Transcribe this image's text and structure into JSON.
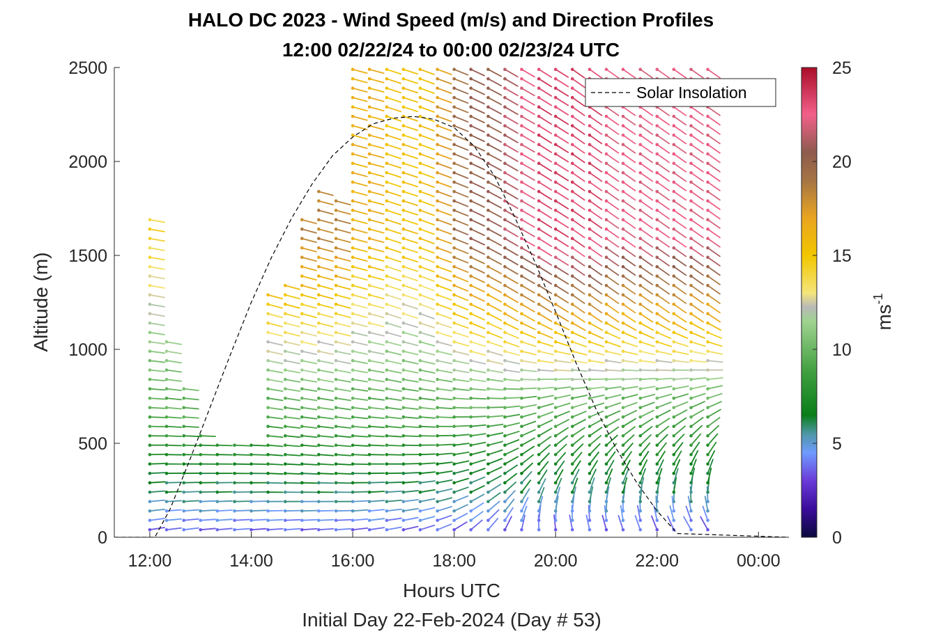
{
  "chart_data": {
    "type": "wind_barb_profile",
    "title": "HALO DC 2023 - Wind Speed (m/s) and Direction Profiles",
    "subtitle": "12:00 02/22/24 to 00:00 02/23/24  UTC",
    "xlabel": "Hours UTC",
    "xlabel_secondary": "Initial Day 22-Feb-2024 (Day # 53)",
    "ylabel": "Altitude (m)",
    "xlim_hours": [
      11.3,
      24.6
    ],
    "ylim": [
      0,
      2500
    ],
    "x_tick_values": [
      12,
      14,
      16,
      18,
      20,
      22,
      24
    ],
    "x_tick_labels": [
      "12:00",
      "14:00",
      "16:00",
      "18:00",
      "20:00",
      "22:00",
      "00:00"
    ],
    "y_ticks": [
      0,
      500,
      1000,
      1500,
      2000,
      2500
    ],
    "y_tick_labels": [
      "0",
      "500",
      "1000",
      "1500",
      "2000",
      "2500"
    ],
    "colorbar": {
      "label": "ms",
      "label_exponent": "-1",
      "range": [
        0,
        25
      ],
      "ticks": [
        0,
        5,
        10,
        15,
        20,
        25
      ],
      "tick_labels": [
        "0",
        "5",
        "10",
        "15",
        "20",
        "25"
      ]
    },
    "legend": {
      "entries": [
        "Solar Insolation"
      ],
      "placement": "top-right"
    },
    "solar_insolation": {
      "hours": [
        11.3,
        12.1,
        12.4,
        12.8,
        13.2,
        13.6,
        14.0,
        14.4,
        14.8,
        15.2,
        15.6,
        16.0,
        16.4,
        16.8,
        17.2,
        17.6,
        18.0,
        18.4,
        18.8,
        19.2,
        19.6,
        20.0,
        20.4,
        20.8,
        21.2,
        21.6,
        22.0,
        22.4,
        24.6
      ],
      "altitude": [
        0,
        0,
        150,
        420,
        700,
        980,
        1250,
        1490,
        1700,
        1880,
        2030,
        2130,
        2200,
        2230,
        2240,
        2225,
        2180,
        2080,
        1920,
        1700,
        1460,
        1200,
        930,
        680,
        470,
        290,
        140,
        20,
        0
      ]
    },
    "wind_profiles": [
      {
        "hour": 12.0,
        "top_alt": 1730,
        "lower_dir": 260,
        "upper_dir": 280,
        "upper_speed": 14
      },
      {
        "hour": 12.33,
        "top_alt": 1060,
        "lower_dir": 262,
        "upper_dir": 282,
        "upper_speed": 15
      },
      {
        "hour": 12.67,
        "top_alt": 800,
        "lower_dir": 262,
        "upper_dir": 282,
        "upper_speed": 15
      },
      {
        "hour": 13.0,
        "top_alt": 540,
        "lower_dir": 264,
        "upper_dir": 280,
        "upper_speed": 10
      },
      {
        "hour": 13.33,
        "top_alt": 520,
        "lower_dir": 264,
        "upper_dir": 280,
        "upper_speed": 10
      },
      {
        "hour": 13.67,
        "top_alt": 500,
        "lower_dir": 265,
        "upper_dir": 280,
        "upper_speed": 10
      },
      {
        "hour": 14.0,
        "top_alt": 520,
        "lower_dir": 265,
        "upper_dir": 280,
        "upper_speed": 10
      },
      {
        "hour": 14.33,
        "top_alt": 1300,
        "lower_dir": 265,
        "upper_dir": 285,
        "upper_speed": 18
      },
      {
        "hour": 14.67,
        "top_alt": 1350,
        "lower_dir": 265,
        "upper_dir": 285,
        "upper_speed": 18
      },
      {
        "hour": 15.0,
        "top_alt": 1700,
        "lower_dir": 265,
        "upper_dir": 285,
        "upper_speed": 18
      },
      {
        "hour": 15.33,
        "top_alt": 1850,
        "lower_dir": 265,
        "upper_dir": 285,
        "upper_speed": 18
      },
      {
        "hour": 15.67,
        "top_alt": 1800,
        "lower_dir": 265,
        "upper_dir": 285,
        "upper_speed": 18
      },
      {
        "hour": 16.0,
        "top_alt": 2500,
        "lower_dir": 262,
        "upper_dir": 285,
        "upper_speed": 16
      },
      {
        "hour": 16.33,
        "top_alt": 2500,
        "lower_dir": 260,
        "upper_dir": 285,
        "upper_speed": 16
      },
      {
        "hour": 16.67,
        "top_alt": 2500,
        "lower_dir": 258,
        "upper_dir": 288,
        "upper_speed": 15
      },
      {
        "hour": 17.0,
        "top_alt": 2500,
        "lower_dir": 255,
        "upper_dir": 288,
        "upper_speed": 15
      },
      {
        "hour": 17.33,
        "top_alt": 2500,
        "lower_dir": 250,
        "upper_dir": 290,
        "upper_speed": 15
      },
      {
        "hour": 17.67,
        "top_alt": 2500,
        "lower_dir": 245,
        "upper_dir": 290,
        "upper_speed": 17
      },
      {
        "hour": 18.0,
        "top_alt": 2500,
        "lower_dir": 235,
        "upper_dir": 292,
        "upper_speed": 19
      },
      {
        "hour": 18.33,
        "top_alt": 2500,
        "lower_dir": 225,
        "upper_dir": 295,
        "upper_speed": 20
      },
      {
        "hour": 18.67,
        "top_alt": 2500,
        "lower_dir": 215,
        "upper_dir": 298,
        "upper_speed": 20
      },
      {
        "hour": 19.0,
        "top_alt": 2500,
        "lower_dir": 200,
        "upper_dir": 300,
        "upper_speed": 21
      },
      {
        "hour": 19.33,
        "top_alt": 2500,
        "lower_dir": 185,
        "upper_dir": 300,
        "upper_speed": 22
      },
      {
        "hour": 19.67,
        "top_alt": 2500,
        "lower_dir": 170,
        "upper_dir": 302,
        "upper_speed": 23
      },
      {
        "hour": 20.0,
        "top_alt": 2500,
        "lower_dir": 165,
        "upper_dir": 302,
        "upper_speed": 23
      },
      {
        "hour": 20.33,
        "top_alt": 2500,
        "lower_dir": 160,
        "upper_dir": 305,
        "upper_speed": 23
      },
      {
        "hour": 20.67,
        "top_alt": 2500,
        "lower_dir": 158,
        "upper_dir": 305,
        "upper_speed": 23
      },
      {
        "hour": 21.0,
        "top_alt": 2500,
        "lower_dir": 155,
        "upper_dir": 305,
        "upper_speed": 22
      },
      {
        "hour": 21.33,
        "top_alt": 2500,
        "lower_dir": 152,
        "upper_dir": 305,
        "upper_speed": 22
      },
      {
        "hour": 21.67,
        "top_alt": 2500,
        "lower_dir": 150,
        "upper_dir": 305,
        "upper_speed": 22
      },
      {
        "hour": 22.0,
        "top_alt": 2500,
        "lower_dir": 148,
        "upper_dir": 305,
        "upper_speed": 22
      },
      {
        "hour": 22.33,
        "top_alt": 2500,
        "lower_dir": 145,
        "upper_dir": 305,
        "upper_speed": 22
      },
      {
        "hour": 22.67,
        "top_alt": 2500,
        "lower_dir": 140,
        "upper_dir": 305,
        "upper_speed": 22
      },
      {
        "hour": 23.0,
        "top_alt": 2500,
        "lower_dir": 140,
        "upper_dir": 305,
        "upper_speed": 22
      }
    ]
  }
}
